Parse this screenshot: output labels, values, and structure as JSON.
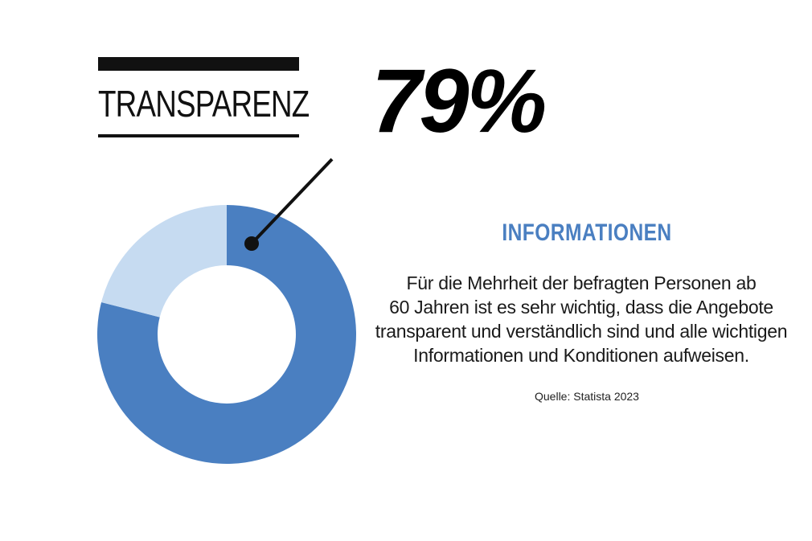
{
  "header": {
    "title": "TRANSPARENZ",
    "highlight_value": "79%"
  },
  "info": {
    "heading": "INFORMATIONEN",
    "body_lines": [
      "Für die Mehrheit der befragten Personen ab",
      "60 Jahren ist es sehr wichtig, dass die Angebote",
      "transparent und verständlich sind und alle wichtigen",
      "Informationen und Konditionen aufweisen."
    ],
    "source": "Quelle: Statista 2023"
  },
  "colors": {
    "primary": "#4a7fc1",
    "secondary": "#c6dbf1",
    "text": "#111111",
    "heading": "#4a7fc1"
  },
  "chart_data": {
    "type": "pie",
    "variant": "donut",
    "title": "TRANSPARENZ",
    "slices": [
      {
        "value": 79,
        "color": "#4a7fc1"
      },
      {
        "value": 21,
        "color": "#c6dbf1"
      }
    ],
    "legend": "none",
    "grid": false
  }
}
